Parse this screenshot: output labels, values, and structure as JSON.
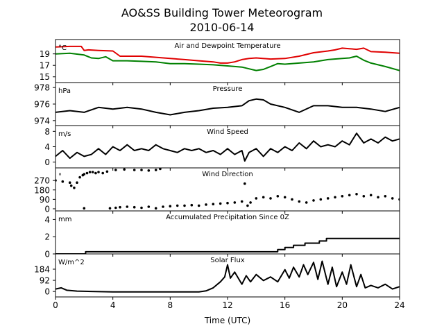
{
  "figure": {
    "title_line1": "AO&SS Building Tower Meteorogram",
    "title_line2": "2010-06-14",
    "xlabel": "Time (UTC)",
    "x_ticks": [
      "0",
      "4",
      "8",
      "12",
      "16",
      "20",
      "24"
    ]
  },
  "chart_data": [
    {
      "type": "line",
      "title": "Air and Dewpoint Temperature",
      "unit_label": "°C",
      "xlim": [
        0,
        24
      ],
      "ylim": [
        14,
        21.5
      ],
      "yticks": [
        15,
        17,
        19
      ],
      "series": [
        {
          "color": "#e00000",
          "x": [
            0,
            1,
            1.8,
            2.0,
            2.3,
            3,
            4,
            4.5,
            5,
            6,
            7,
            8,
            9,
            10,
            11,
            11.5,
            12,
            12.5,
            13,
            13.5,
            14,
            15,
            16,
            17,
            18,
            19,
            19.5,
            20,
            20.5,
            21,
            21.5,
            22,
            23,
            24
          ],
          "values": [
            20.2,
            20.3,
            20.3,
            19.6,
            19.7,
            19.6,
            19.5,
            18.6,
            18.6,
            18.6,
            18.4,
            18.2,
            18.0,
            17.8,
            17.6,
            17.4,
            17.4,
            17.6,
            18.0,
            18.2,
            18.3,
            18.1,
            18.2,
            18.6,
            19.2,
            19.5,
            19.7,
            20.0,
            19.9,
            19.8,
            20.0,
            19.4,
            19.3,
            19.1
          ]
        },
        {
          "color": "#008000",
          "x": [
            0,
            1,
            2,
            2.5,
            3,
            3.5,
            4,
            5,
            6,
            7,
            8,
            9,
            10,
            11,
            12,
            13,
            13.5,
            14,
            14.5,
            15,
            15.5,
            16,
            17,
            18,
            19,
            20,
            20.5,
            21,
            21.5,
            22,
            23,
            24
          ],
          "values": [
            19.0,
            19.1,
            18.8,
            18.3,
            18.2,
            18.5,
            17.8,
            17.8,
            17.7,
            17.6,
            17.3,
            17.3,
            17.2,
            17.1,
            16.9,
            16.7,
            16.4,
            16.1,
            16.3,
            16.8,
            17.3,
            17.2,
            17.4,
            17.6,
            18.0,
            18.2,
            18.3,
            18.6,
            17.9,
            17.4,
            16.8,
            16.1
          ]
        }
      ]
    },
    {
      "type": "line",
      "title": "Pressure",
      "unit_label": "hPa",
      "xlim": [
        0,
        24
      ],
      "ylim": [
        973.4,
        978.6
      ],
      "yticks": [
        974,
        976,
        978
      ],
      "series": [
        {
          "color": "#000000",
          "x": [
            0,
            1,
            2,
            3,
            4,
            5,
            5.5,
            6,
            7,
            8,
            9,
            10,
            11,
            12,
            13,
            13.5,
            14,
            14.5,
            15,
            16,
            17,
            18,
            19,
            20,
            21,
            22,
            23,
            24
          ],
          "values": [
            975.0,
            975.2,
            975.0,
            975.6,
            975.4,
            975.6,
            975.5,
            975.4,
            975.0,
            974.7,
            975.0,
            975.2,
            975.5,
            975.6,
            975.8,
            976.4,
            976.6,
            976.5,
            976.0,
            975.6,
            975.0,
            975.8,
            975.8,
            975.6,
            975.6,
            975.4,
            975.1,
            975.6
          ]
        }
      ]
    },
    {
      "type": "line",
      "title": "Wind Speed",
      "unit_label": "m/s",
      "xlim": [
        0,
        24
      ],
      "ylim": [
        -1.5,
        9.5
      ],
      "yticks": [
        0,
        4,
        8
      ],
      "series": [
        {
          "color": "#000000",
          "x": [
            0,
            0.5,
            1,
            1.5,
            2,
            2.5,
            3,
            3.5,
            4,
            4.5,
            5,
            5.5,
            6,
            6.5,
            7,
            7.5,
            8,
            8.5,
            9,
            9.5,
            10,
            10.5,
            11,
            11.5,
            12,
            12.5,
            13,
            13.2,
            13.5,
            14,
            14.5,
            15,
            15.5,
            16,
            16.5,
            17,
            17.5,
            18,
            18.5,
            19,
            19.5,
            20,
            20.5,
            21,
            21.5,
            22,
            22.5,
            23,
            23.5,
            24
          ],
          "values": [
            1.5,
            3.0,
            1.0,
            2.5,
            1.5,
            2.0,
            3.5,
            2.0,
            4.0,
            3.0,
            4.5,
            3.0,
            3.5,
            3.0,
            4.5,
            3.5,
            3.0,
            2.5,
            3.5,
            3.0,
            3.5,
            2.5,
            3.0,
            2.0,
            3.5,
            2.0,
            3.0,
            0.3,
            2.5,
            3.5,
            1.5,
            3.5,
            2.5,
            4.0,
            3.0,
            5.0,
            3.5,
            5.5,
            4.0,
            4.5,
            4.0,
            5.5,
            4.5,
            7.5,
            5.0,
            6.0,
            5.0,
            6.5,
            5.5,
            6.0
          ]
        }
      ]
    },
    {
      "type": "scatter",
      "title": "Wind Direction",
      "unit_label": "°",
      "xlim": [
        0,
        24
      ],
      "ylim": [
        -20,
        390
      ],
      "yticks": [
        0,
        90,
        180,
        270
      ],
      "series": [
        {
          "color": "#000000",
          "x": [
            0,
            0.5,
            1,
            1.1,
            1.3,
            1.5,
            1.7,
            1.9,
            2.0,
            2.2,
            2.4,
            2.6,
            2.8,
            3.0,
            3.3,
            3.6,
            3.8,
            4.2,
            4.5,
            5.0,
            5.5,
            6.0,
            6.5,
            7.0,
            7.5,
            8.0,
            8.5,
            9.0,
            9.5,
            10.0,
            10.5,
            11.0,
            11.5,
            12.0,
            12.5,
            13.0,
            13.2,
            13.4,
            13.6,
            14.0,
            14.5,
            15.0,
            15.5,
            16.0,
            16.5,
            17.0,
            17.5,
            18.0,
            18.5,
            19.0,
            19.5,
            20.0,
            20.5,
            21.0,
            21.5,
            22.0,
            22.5,
            23.0,
            23.5,
            24.0,
            2.0,
            4.2,
            4.8,
            5.5,
            6.0,
            6.5,
            7.0,
            7.3
          ],
          "values": [
            270,
            260,
            250,
            220,
            200,
            250,
            300,
            320,
            330,
            340,
            350,
            350,
            340,
            350,
            340,
            355,
            5,
            10,
            15,
            20,
            15,
            10,
            20,
            5,
            20,
            25,
            30,
            30,
            35,
            30,
            40,
            45,
            50,
            55,
            60,
            70,
            240,
            30,
            60,
            100,
            110,
            100,
            120,
            110,
            90,
            70,
            60,
            80,
            90,
            100,
            110,
            120,
            130,
            140,
            120,
            130,
            110,
            120,
            100,
            90,
            5,
            370,
            375,
            370,
            370,
            365,
            370,
            380
          ]
        }
      ]
    },
    {
      "type": "line",
      "title": "Accumulated Precipitation Since 0Z",
      "unit_label": "mm",
      "xlim": [
        0,
        24
      ],
      "ylim": [
        0,
        5
      ],
      "yticks": [
        0,
        2,
        4
      ],
      "series": [
        {
          "color": "#000000",
          "x": [
            0,
            2.1,
            2.1,
            15.5,
            15.5,
            16.0,
            16.0,
            16.6,
            16.6,
            17.4,
            17.4,
            18.4,
            18.4,
            18.9,
            18.9,
            24
          ],
          "values": [
            0,
            0,
            0.25,
            0.25,
            0.5,
            0.5,
            0.75,
            0.75,
            1.0,
            1.0,
            1.25,
            1.25,
            1.5,
            1.5,
            1.8,
            1.8
          ]
        }
      ]
    },
    {
      "type": "line",
      "title": "Solar Flux",
      "unit_label": "W/m^2",
      "xlim": [
        0,
        24
      ],
      "ylim": [
        -45,
        310
      ],
      "yticks": [
        0,
        92,
        184
      ],
      "series": [
        {
          "color": "#000000",
          "x": [
            0,
            0.4,
            0.8,
            1.5,
            2.5,
            4,
            6,
            8,
            10,
            10.5,
            11,
            11.5,
            11.8,
            12.0,
            12.2,
            12.5,
            13,
            13.3,
            13.6,
            14,
            14.5,
            15,
            15.5,
            16,
            16.3,
            16.6,
            17,
            17.3,
            17.6,
            18,
            18.3,
            18.6,
            19,
            19.3,
            19.6,
            20,
            20.3,
            20.6,
            21,
            21.3,
            21.6,
            22,
            22.5,
            23,
            23.5,
            24
          ],
          "values": [
            20,
            30,
            10,
            3,
            0,
            -3,
            -3,
            -3,
            -3,
            5,
            30,
            80,
            120,
            220,
            110,
            160,
            60,
            130,
            80,
            140,
            90,
            120,
            80,
            180,
            110,
            200,
            120,
            220,
            140,
            240,
            100,
            250,
            60,
            200,
            40,
            160,
            60,
            220,
            40,
            140,
            30,
            50,
            30,
            60,
            20,
            40
          ]
        }
      ]
    }
  ]
}
